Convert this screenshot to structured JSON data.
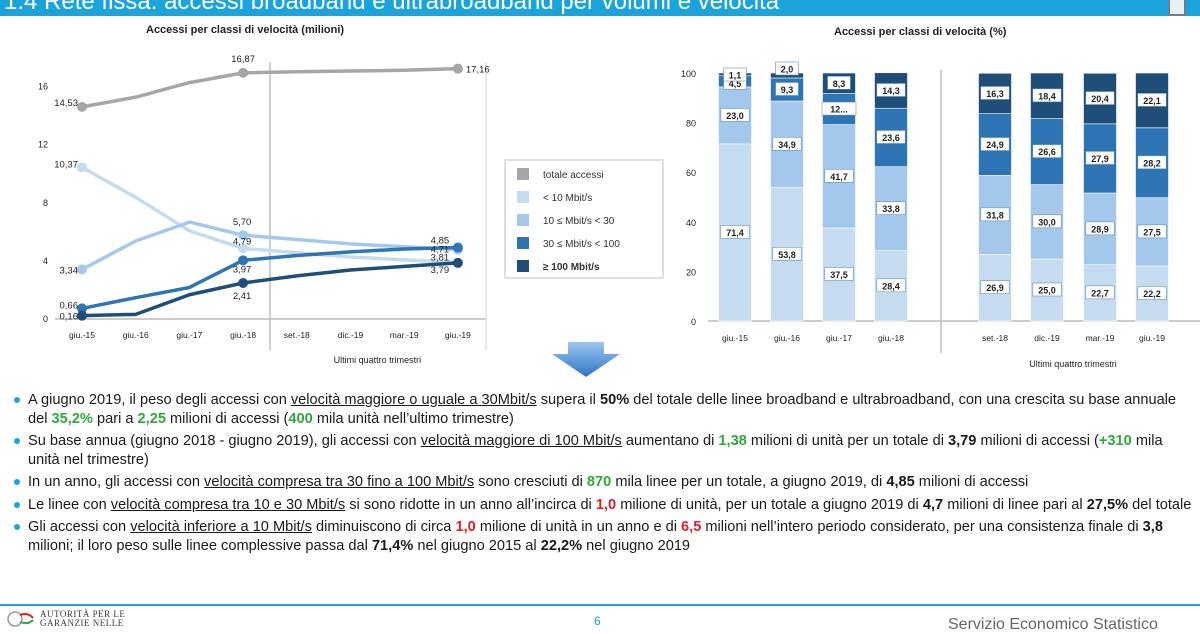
{
  "header": {
    "title": "1.4 Rete fissa: accessi broadband e ultrabroadband per volumi e velocità"
  },
  "chart_data": [
    {
      "type": "line",
      "title": "Accessi per classi di velocità (milioni)",
      "x": [
        "giu.-15",
        "giu.-16",
        "giu.-17",
        "giu.-18",
        "set.-18",
        "dic.-19",
        "mar.-19",
        "giu.-19"
      ],
      "y_ticks": [
        "0",
        "4",
        "8",
        "12",
        "16"
      ],
      "ylim": [
        0,
        18
      ],
      "bracket_label": "Ultimi quattro trimestri",
      "series": [
        {
          "name": "totale accessi",
          "color": "#a6a6a6",
          "values": [
            14.53,
            15.2,
            16.2,
            16.87,
            16.95,
            17.0,
            17.05,
            17.16
          ]
        },
        {
          "name": "< 10 Mbit/s",
          "color": "#c5dcf0",
          "values": [
            10.37,
            8.3,
            6.0,
            4.79,
            4.5,
            4.2,
            4.0,
            3.81
          ]
        },
        {
          "name": "10 ≤ Mbit/s < 30",
          "color": "#a4c8ec",
          "values": [
            3.34,
            5.3,
            6.6,
            5.7,
            5.4,
            5.1,
            4.9,
            4.71
          ]
        },
        {
          "name": "30 ≤ Mbit/s < 100",
          "color": "#2e75b6",
          "values": [
            0.66,
            1.4,
            2.1,
            3.97,
            4.3,
            4.55,
            4.75,
            4.85
          ]
        },
        {
          "name": "≥ 100 Mbit/s",
          "color": "#1f4e79",
          "values": [
            0.16,
            0.25,
            1.6,
            2.41,
            2.9,
            3.3,
            3.55,
            3.79
          ]
        }
      ],
      "data_labels": [
        {
          "series": 0,
          "point": 0,
          "text": "14,53"
        },
        {
          "series": 0,
          "point": 3,
          "text": "16,87"
        },
        {
          "series": 0,
          "point": 7,
          "text": "17,16"
        },
        {
          "series": 1,
          "point": 0,
          "text": "10,37"
        },
        {
          "series": 1,
          "point": 3,
          "text": "4,79"
        },
        {
          "series": 1,
          "point": 7,
          "text": "3,81"
        },
        {
          "series": 2,
          "point": 0,
          "text": "3,34"
        },
        {
          "series": 2,
          "point": 3,
          "text": "5,70"
        },
        {
          "series": 2,
          "point": 7,
          "text": "4,71"
        },
        {
          "series": 3,
          "point": 0,
          "text": "0,66"
        },
        {
          "series": 3,
          "point": 3,
          "text": "3,97"
        },
        {
          "series": 3,
          "point": 7,
          "text": "4,85"
        },
        {
          "series": 4,
          "point": 0,
          "text": "0,16"
        },
        {
          "series": 4,
          "point": 3,
          "text": "2,41"
        },
        {
          "series": 4,
          "point": 7,
          "text": "3,79"
        }
      ],
      "legend_position": "right"
    },
    {
      "type": "bar",
      "stacked": true,
      "title": "Accessi per classi di velocità (%)",
      "categories": [
        "giu.-15",
        "giu.-16",
        "giu.-17",
        "giu.-18",
        "set.-18",
        "dic.-19",
        "mar.-19",
        "giu.-19"
      ],
      "y_ticks": [
        "0",
        "20",
        "40",
        "60",
        "80",
        "100"
      ],
      "ylim": [
        0,
        100
      ],
      "bracket_label": "Ultimi quattro trimestri",
      "series": [
        {
          "name": "< 10 Mbit/s",
          "color": "#c5dcf0",
          "values": [
            71.4,
            53.8,
            37.5,
            28.4,
            26.9,
            25.0,
            22.7,
            22.2
          ],
          "labels": [
            "71,4",
            "53,8",
            "37,5",
            "28,4",
            "26,9",
            "25,0",
            "22,7",
            "22,2"
          ]
        },
        {
          "name": "10 ≤ Mbit/s < 30",
          "color": "#a4c8ec",
          "values": [
            23.0,
            34.9,
            41.7,
            33.8,
            31.8,
            30.0,
            28.9,
            27.5
          ],
          "labels": [
            "23,0",
            "34,9",
            "41,7",
            "33,8",
            "31,8",
            "30,0",
            "28,9",
            "27,5"
          ]
        },
        {
          "name": "30 ≤ Mbit/s < 100",
          "color": "#2e75b6",
          "values": [
            4.5,
            9.3,
            12.5,
            23.6,
            24.9,
            26.6,
            27.9,
            28.2
          ],
          "labels": [
            "4,5",
            "9,3",
            "12...",
            "23,6",
            "24,9",
            "26,6",
            "27,9",
            "28,2"
          ]
        },
        {
          "name": "≥ 100 Mbit/s",
          "color": "#1f4e79",
          "values": [
            1.1,
            2.0,
            8.3,
            14.3,
            16.3,
            18.4,
            20.4,
            22.1
          ],
          "labels": [
            "1,1",
            "2,0",
            "8,3",
            "14,3",
            "16,3",
            "18,4",
            "20,4",
            "22,1"
          ]
        }
      ]
    }
  ],
  "bullets": [
    [
      "A giugno 2019, il peso degli accessi con ",
      "velocità maggiore o uguale a 30Mbit/s",
      " supera il ",
      "50%",
      " del totale delle linee broadband e ultrabroadband, con una crescita su base annuale del ",
      "35,2%",
      " pari a ",
      "2,25",
      " milioni di accessi (",
      "400",
      " mila unità nell’ultimo trimestre)"
    ],
    [
      "Su base annua (giugno 2018 - giugno 2019), gli accessi con  ",
      "velocità maggiore di 100 Mbit/s",
      " aumentano di ",
      "1,38",
      " milioni di unità per un totale di ",
      "3,79",
      " milioni di accessi (",
      "+310",
      " mila unità nel trimestre)"
    ],
    [
      "In un anno, gli accessi con ",
      "velocità compresa tra 30 fino a 100 Mbit/s",
      " sono cresciuti di ",
      "870",
      " mila linee per un totale, a giugno 2019, di ",
      "4,85",
      " milioni di accessi"
    ],
    [
      "Le linee con ",
      "velocità compresa tra 10 e 30 Mbit/s",
      " si sono ridotte in un anno all’incirca di ",
      "1,0",
      " milione di unità, per un totale a giugno 2019 di ",
      "4,7",
      " milioni di linee pari al ",
      "27,5%",
      " del totale"
    ],
    [
      "Gli accessi con ",
      "velocità inferiore a 10 Mbit/s",
      " diminuiscono di circa ",
      "1,0",
      " milione di unità in un anno e di ",
      "6,5",
      " milioni nell’intero periodo considerato, per una consistenza finale di ",
      "3,8",
      " milioni; il loro peso sulle linee complessive passa dal ",
      "71,4%",
      " nel giugno 2015 al ",
      "22,2%",
      " nel giugno 2019"
    ]
  ],
  "footer": {
    "org_line1": "AUTORITÀ PER LE",
    "org_line2": "GARANZIE NELLE",
    "page": "6",
    "service": "Servizio Economico Statistico"
  },
  "colors": {
    "accent": "#1ba3dc",
    "arrow": "#4a90d9",
    "green": "#2eaa3c",
    "red": "#e02020"
  }
}
